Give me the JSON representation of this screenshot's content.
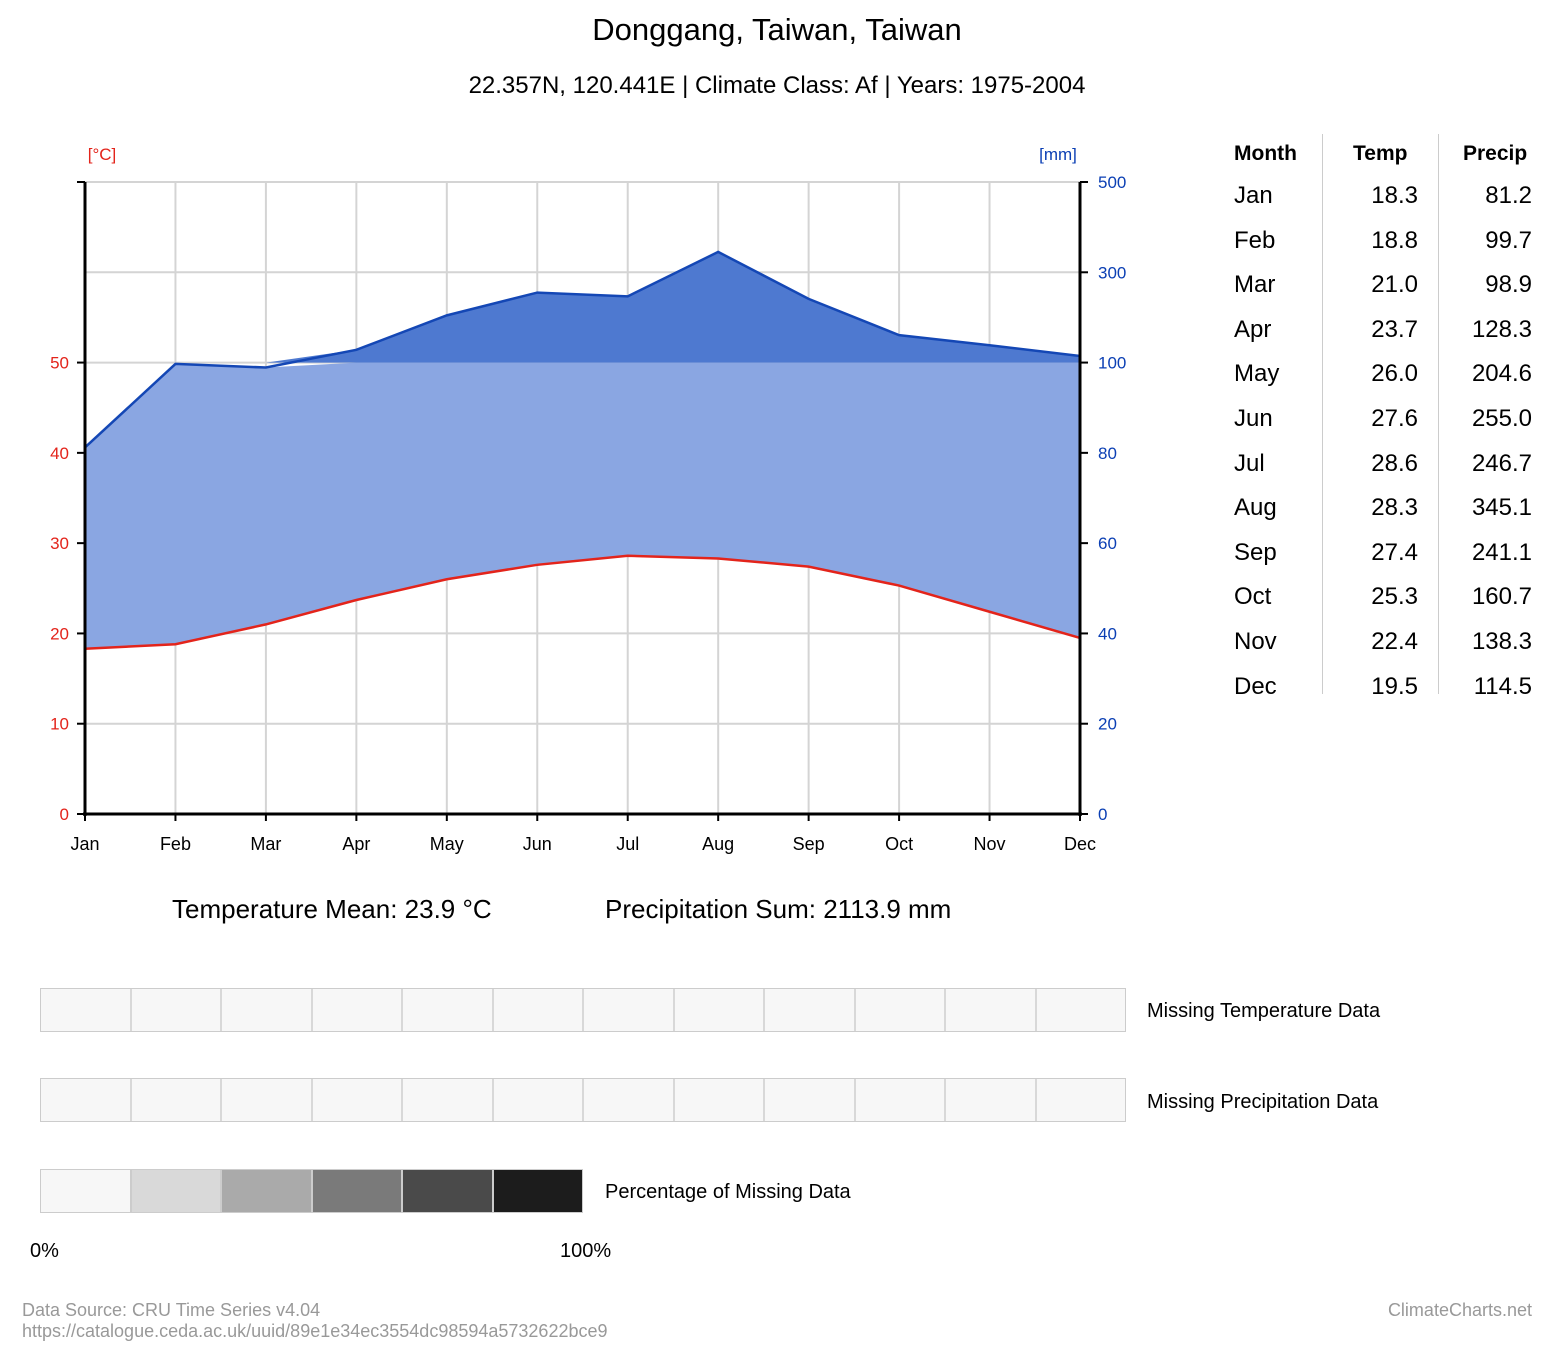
{
  "title": "Donggang, Taiwan, Taiwan",
  "subtitle": "22.357N, 120.441E | Climate Class: Af | Years: 1975-2004",
  "chart_data": {
    "type": "line",
    "x": [
      "Jan",
      "Feb",
      "Mar",
      "Apr",
      "May",
      "Jun",
      "Jul",
      "Aug",
      "Sep",
      "Oct",
      "Nov",
      "Dec"
    ],
    "series": [
      {
        "values": [
          18.3,
          18.8,
          21.0,
          23.7,
          26.0,
          27.6,
          28.6,
          28.3,
          27.4,
          25.3,
          22.4,
          19.5
        ],
        "color": "#e3241b"
      },
      {
        "values": [
          81.2,
          99.7,
          98.9,
          128.3,
          204.6,
          255.0,
          246.7,
          345.1,
          241.1,
          160.7,
          138.3,
          114.5
        ],
        "color": "#1447b5"
      }
    ],
    "y_left": {
      "label": "[°C]",
      "ticks": [
        "0",
        "10",
        "20",
        "30",
        "40",
        "50"
      ],
      "range": [
        0,
        70
      ],
      "color": "#e3241b"
    },
    "y_right": {
      "label": "[mm]",
      "ticks": [
        "0",
        "20",
        "40",
        "60",
        "80",
        "100",
        "300",
        "500"
      ],
      "range": [
        0,
        500
      ],
      "scale": "linear to 100, compressed above 100",
      "color": "#0b3fb4"
    },
    "grid": true,
    "fill_colors": {
      "humid": "#8aa6e2",
      "perhumid": "#4e79d0"
    }
  },
  "table": {
    "headers": [
      "Month",
      "Temp",
      "Precip"
    ],
    "rows": [
      [
        "Jan",
        "18.3",
        "81.2"
      ],
      [
        "Feb",
        "18.8",
        "99.7"
      ],
      [
        "Mar",
        "21.0",
        "98.9"
      ],
      [
        "Apr",
        "23.7",
        "128.3"
      ],
      [
        "May",
        "26.0",
        "204.6"
      ],
      [
        "Jun",
        "27.6",
        "255.0"
      ],
      [
        "Jul",
        "28.6",
        "246.7"
      ],
      [
        "Aug",
        "28.3",
        "345.1"
      ],
      [
        "Sep",
        "27.4",
        "241.1"
      ],
      [
        "Oct",
        "25.3",
        "160.7"
      ],
      [
        "Nov",
        "22.4",
        "138.3"
      ],
      [
        "Dec",
        "19.5",
        "114.5"
      ]
    ]
  },
  "summary": {
    "temp_mean": "Temperature Mean: 23.9 °C",
    "precip_sum": "Precipitation Sum: 2113.9 mm"
  },
  "missing": {
    "temp_label": "Missing Temperature Data",
    "precip_label": "Missing Precipitation Data",
    "scale_label": "Percentage of Missing Data",
    "scale_colors": [
      "#f7f7f7",
      "#d9d9d9",
      "#aaaaaa",
      "#7a7a7a",
      "#4a4a4a",
      "#1c1c1c"
    ],
    "scale_min": "0%",
    "scale_max": "100%"
  },
  "footer": {
    "source": "Data Source: CRU Time Series v4.04",
    "url": "https://catalogue.ceda.ac.uk/uuid/89e1e34ec3554dc98594a5732622bce9",
    "brand": "ClimateCharts.net"
  }
}
